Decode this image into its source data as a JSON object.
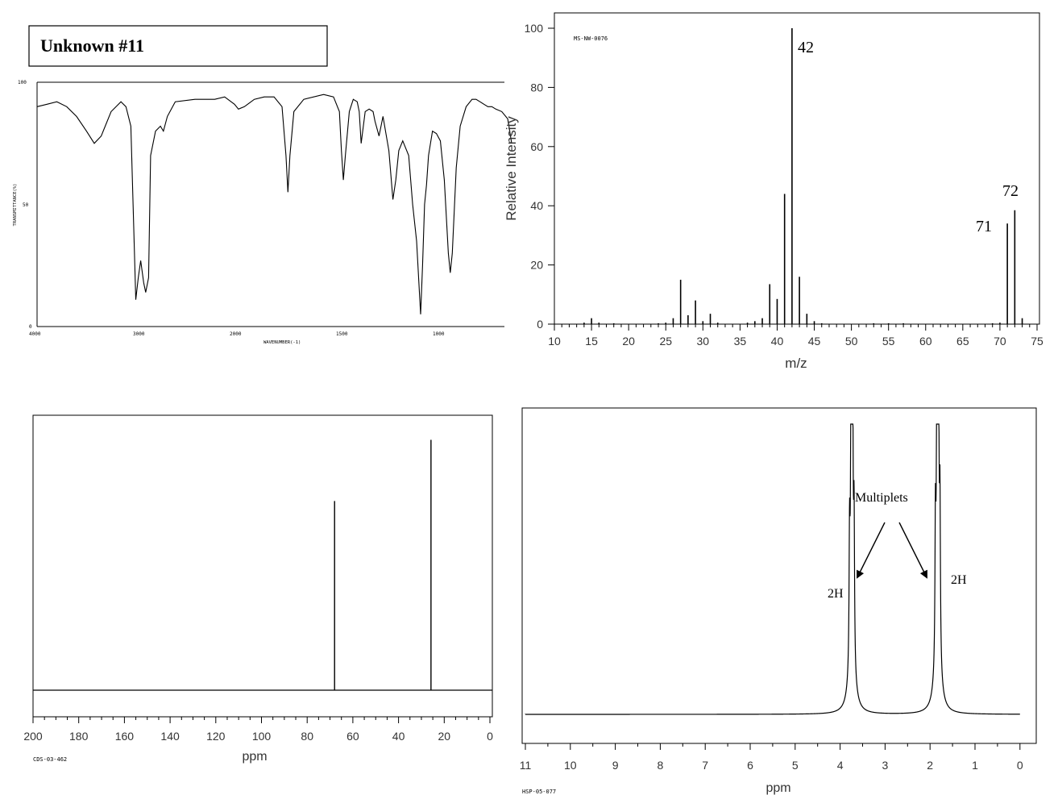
{
  "title": "Unknown #11",
  "ir": {
    "y_ticks": [
      "100",
      "50",
      "0"
    ],
    "x_ticks": [
      "4000",
      "3000",
      "2000",
      "1500",
      "1000"
    ],
    "xlabel": "WAVENUMBER(-1)",
    "ylabel": "TRANSMITTANCE(%)"
  },
  "ms": {
    "code": "MS-NW-0076",
    "ylabel": "Relative Intensity",
    "xlabel": "m/z",
    "annotations": [
      "42",
      "71",
      "72"
    ]
  },
  "c13": {
    "code": "CDS-03-462",
    "xlabel": "ppm"
  },
  "h1": {
    "code": "HSP-05-077",
    "xlabel": "ppm",
    "annotations": {
      "multiplets": "Multiplets",
      "left_2h": "2H",
      "right_2h": "2H"
    }
  },
  "chart_data": [
    {
      "type": "line",
      "name": "IR spectrum",
      "xlabel": "WAVENUMBER(-1)",
      "ylabel": "TRANSMITTANCE(%)",
      "xlim": [
        4000,
        600
      ],
      "ylim": [
        0,
        100
      ],
      "x_ticks": [
        4000,
        3000,
        2000,
        1500,
        1000
      ],
      "y_ticks": [
        100,
        50,
        0
      ],
      "grid": false,
      "x": [
        4000,
        3900,
        3800,
        3700,
        3600,
        3500,
        3420,
        3350,
        3250,
        3150,
        3100,
        3050,
        3000,
        2975,
        2950,
        2920,
        2900,
        2870,
        2850,
        2800,
        2750,
        2720,
        2680,
        2600,
        2400,
        2200,
        2100,
        2000,
        1980,
        1950,
        1900,
        1850,
        1800,
        1760,
        1740,
        1730,
        1720,
        1700,
        1650,
        1550,
        1500,
        1470,
        1460,
        1450,
        1440,
        1420,
        1400,
        1380,
        1370,
        1360,
        1340,
        1320,
        1300,
        1290,
        1270,
        1250,
        1220,
        1200,
        1185,
        1170,
        1150,
        1120,
        1100,
        1080,
        1070,
        1060,
        1050,
        1040,
        1030,
        1020,
        1000,
        980,
        960,
        940,
        920,
        910,
        900,
        880,
        860,
        830,
        800,
        780,
        760,
        740,
        720,
        700,
        680,
        650,
        620,
        600
      ],
      "y": [
        90,
        91,
        92,
        90,
        86,
        80,
        75,
        78,
        88,
        92,
        90,
        82,
        11,
        20,
        27,
        18,
        14,
        20,
        70,
        80,
        82,
        80,
        86,
        92,
        93,
        93,
        94,
        91,
        89,
        90,
        93,
        94,
        94,
        90,
        70,
        55,
        70,
        88,
        93,
        95,
        94,
        88,
        72,
        60,
        70,
        88,
        93,
        92,
        88,
        75,
        88,
        89,
        88,
        84,
        78,
        86,
        72,
        52,
        60,
        72,
        76,
        70,
        50,
        35,
        20,
        5,
        25,
        50,
        58,
        70,
        80,
        79,
        76,
        60,
        30,
        22,
        30,
        65,
        82,
        90,
        93,
        93,
        92,
        91,
        90,
        90,
        89,
        88,
        85,
        75
      ]
    },
    {
      "type": "bar",
      "name": "Mass spectrum",
      "title": "MS-NW-0076",
      "xlabel": "m/z",
      "ylabel": "Relative Intensity",
      "xlim": [
        10,
        75
      ],
      "ylim": [
        0,
        100
      ],
      "x_ticks": [
        10,
        15,
        20,
        25,
        30,
        35,
        40,
        45,
        50,
        55,
        60,
        65,
        70,
        75
      ],
      "y_ticks": [
        0,
        20,
        40,
        60,
        80,
        100
      ],
      "x": [
        14,
        15,
        16,
        18,
        24,
        25,
        26,
        27,
        28,
        29,
        30,
        31,
        32,
        36,
        37,
        38,
        39,
        40,
        41,
        42,
        43,
        44,
        45,
        46,
        53,
        55,
        57,
        69,
        70,
        71,
        72,
        73
      ],
      "y": [
        0.5,
        2,
        0.5,
        0.3,
        0.3,
        0.5,
        2,
        15,
        3,
        8,
        1,
        3.5,
        0.5,
        0.5,
        1,
        2,
        13.5,
        8.5,
        44,
        100,
        16,
        3.5,
        1,
        0.3,
        0.3,
        0.3,
        0.3,
        0.3,
        0.5,
        34,
        38.5,
        2
      ],
      "annotations": [
        {
          "x": 42,
          "label": "42"
        },
        {
          "x": 71,
          "label": "71"
        },
        {
          "x": 72,
          "label": "72"
        }
      ]
    },
    {
      "type": "line",
      "name": "13C NMR",
      "title": "CDS-03-462",
      "xlabel": "ppm",
      "xlim": [
        200,
        0
      ],
      "x_ticks": [
        200,
        180,
        160,
        140,
        120,
        100,
        80,
        60,
        40,
        20,
        0
      ],
      "peaks": [
        {
          "ppm": 68,
          "height": 0.68
        },
        {
          "ppm": 25.8,
          "height": 0.9
        }
      ]
    },
    {
      "type": "line",
      "name": "1H NMR",
      "title": "HSP-05-077",
      "xlabel": "ppm",
      "xlim": [
        11,
        0
      ],
      "x_ticks": [
        11,
        10,
        9,
        8,
        7,
        6,
        5,
        4,
        3,
        2,
        1,
        0
      ],
      "peaks": [
        {
          "ppm": 3.74,
          "height": 0.91,
          "integration": "2H",
          "multiplicity": "Multiplets"
        },
        {
          "ppm": 1.83,
          "height": 0.98,
          "integration": "2H",
          "multiplicity": "Multiplets"
        }
      ]
    }
  ]
}
